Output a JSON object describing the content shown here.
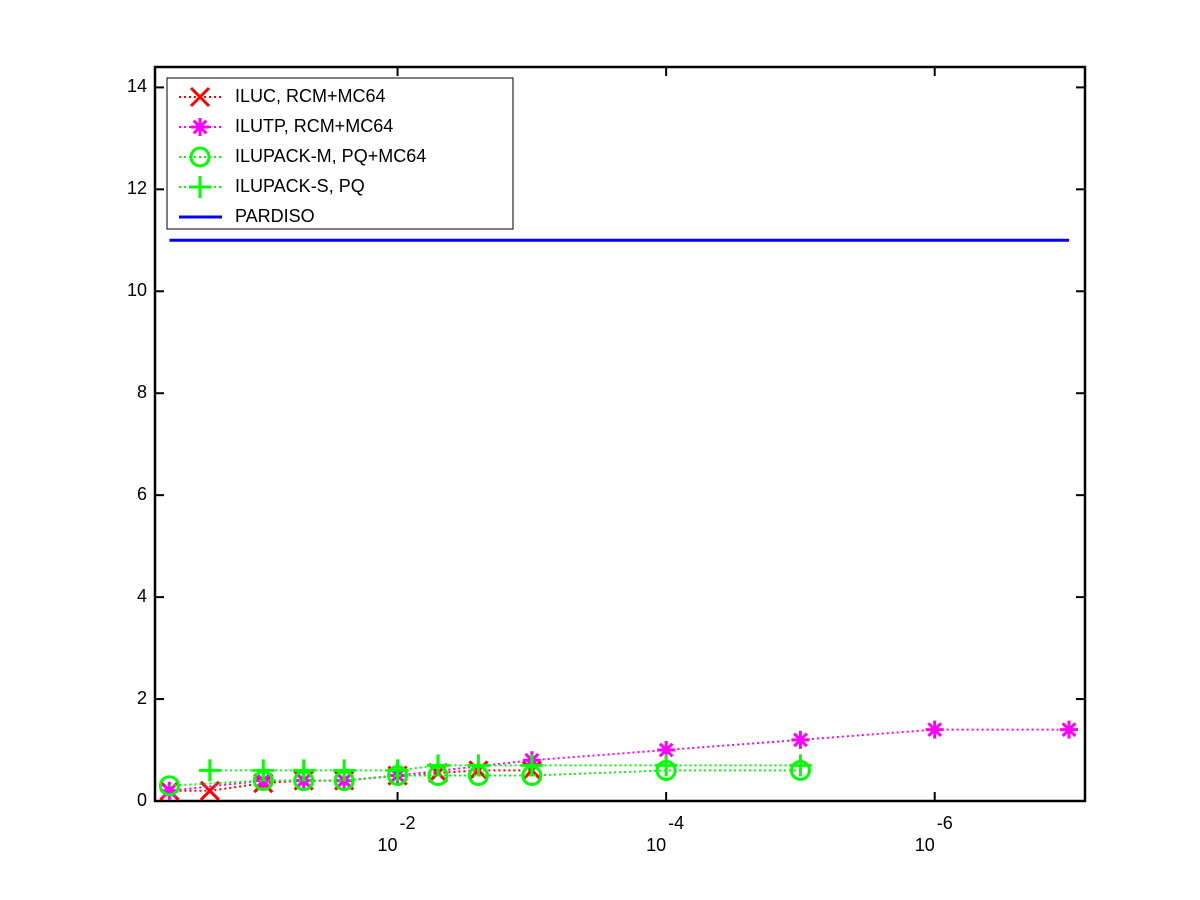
{
  "chart_data": {
    "type": "line",
    "xscale": "log",
    "xreverse": true,
    "xlim": [
      0.64,
      7.6e-08
    ],
    "ylim": [
      0,
      14.4
    ],
    "xticks": [
      {
        "value": 0.01,
        "label": "10",
        "exponent": "-2"
      },
      {
        "value": 0.0001,
        "label": "10",
        "exponent": "-4"
      },
      {
        "value": 1e-06,
        "label": "10",
        "exponent": "-6"
      }
    ],
    "yticks": [
      0,
      2,
      4,
      6,
      8,
      10,
      12,
      14
    ],
    "legend": "upper left",
    "series": [
      {
        "name": "ILUC, RCM+MC64",
        "color": "#ff0000",
        "marker": "x",
        "linestyle": "dotted",
        "x": [
          0.5,
          0.25,
          0.1,
          0.05,
          0.025,
          0.01,
          0.005,
          0.0025,
          0.001
        ],
        "values": [
          0.2,
          0.2,
          0.35,
          0.4,
          0.4,
          0.5,
          0.55,
          0.6,
          0.6
        ]
      },
      {
        "name": "ILUTP, RCM+MC64",
        "color": "#ff00ff",
        "marker": "*",
        "linestyle": "dotted",
        "x": [
          0.5,
          0.1,
          0.05,
          0.025,
          0.01,
          0.001,
          0.0001,
          1e-05,
          1e-06,
          1e-07
        ],
        "values": [
          0.2,
          0.4,
          0.4,
          0.4,
          0.5,
          0.8,
          1.0,
          1.2,
          1.4,
          1.4
        ]
      },
      {
        "name": "ILUPACK-M, PQ+MC64",
        "color": "#00ff00",
        "marker": "o",
        "linestyle": "dotted",
        "x": [
          0.5,
          0.1,
          0.05,
          0.025,
          0.01,
          0.005,
          0.0025,
          0.001,
          0.0001,
          1e-05
        ],
        "values": [
          0.3,
          0.4,
          0.4,
          0.4,
          0.5,
          0.5,
          0.5,
          0.5,
          0.6,
          0.6
        ]
      },
      {
        "name": "ILUPACK-S, PQ",
        "color": "#00ff00",
        "marker": "+",
        "linestyle": "dotted",
        "x": [
          0.25,
          0.1,
          0.05,
          0.025,
          0.01,
          0.005,
          0.0025,
          0.001,
          0.0001,
          1e-05
        ],
        "values": [
          0.6,
          0.6,
          0.6,
          0.6,
          0.6,
          0.7,
          0.7,
          0.7,
          0.7,
          0.7
        ]
      },
      {
        "name": "PARDISO",
        "color": "#0000ff",
        "marker": "none",
        "linestyle": "solid",
        "x": [
          0.5,
          1e-07
        ],
        "values": [
          11,
          11
        ]
      }
    ]
  }
}
